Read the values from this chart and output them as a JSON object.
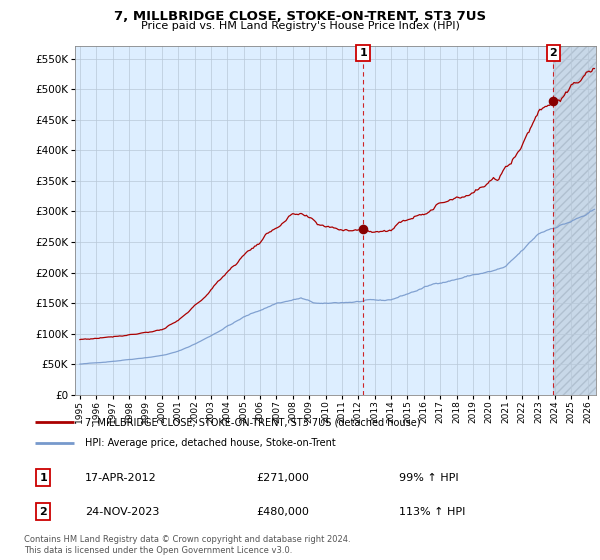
{
  "title": "7, MILLBRIDGE CLOSE, STOKE-ON-TRENT, ST3 7US",
  "subtitle": "Price paid vs. HM Land Registry's House Price Index (HPI)",
  "ytick_vals": [
    0,
    50000,
    100000,
    150000,
    200000,
    250000,
    300000,
    350000,
    400000,
    450000,
    500000,
    550000
  ],
  "ylim": [
    0,
    570000
  ],
  "xlim_start": 1994.7,
  "xlim_end": 2026.5,
  "sale1_x": 2012.29,
  "sale1_y": 271000,
  "sale2_x": 2023.9,
  "sale2_y": 480000,
  "red_line_color": "#aa0000",
  "blue_line_color": "#7799cc",
  "dashed_line_color": "#cc0000",
  "marker_color": "#880000",
  "plot_bg_color": "#ddeeff",
  "hatch_color": "#c0ccdd",
  "legend_label_red": "7, MILLBRIDGE CLOSE, STOKE-ON-TRENT, ST3 7US (detached house)",
  "legend_label_blue": "HPI: Average price, detached house, Stoke-on-Trent",
  "annotation1_date": "17-APR-2012",
  "annotation1_price": "£271,000",
  "annotation1_hpi": "99% ↑ HPI",
  "annotation2_date": "24-NOV-2023",
  "annotation2_price": "£480,000",
  "annotation2_hpi": "113% ↑ HPI",
  "footer": "Contains HM Land Registry data © Crown copyright and database right 2024.\nThis data is licensed under the Open Government Licence v3.0."
}
